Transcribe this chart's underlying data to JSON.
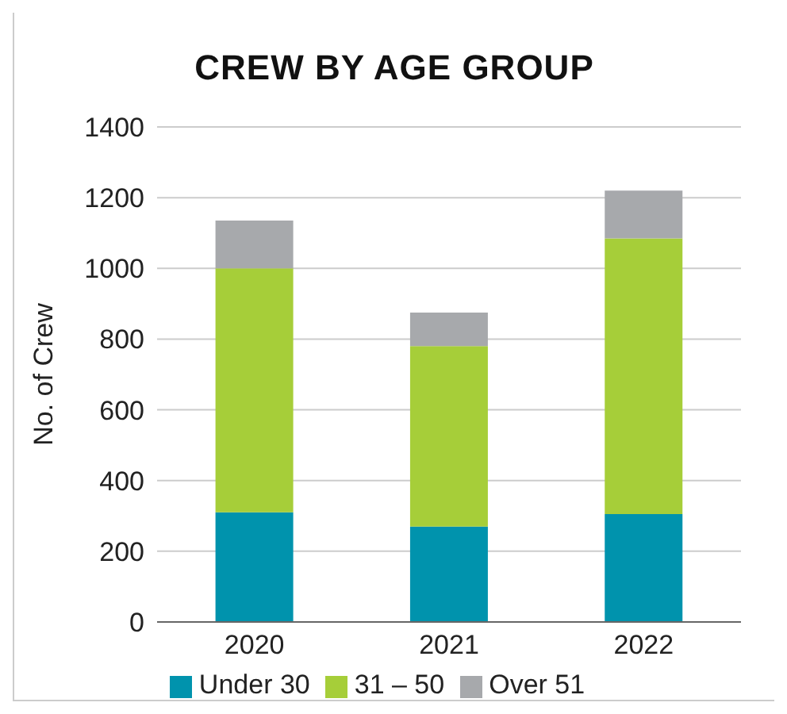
{
  "chart_data": {
    "type": "bar",
    "title": "CREW BY AGE GROUP",
    "ylabel": "No. of Crew",
    "categories": [
      "2020",
      "2021",
      "2022"
    ],
    "stacked": true,
    "series": [
      {
        "name": "Under 30",
        "color": "#0093ad",
        "values": [
          310,
          270,
          305
        ]
      },
      {
        "name": "31 – 50",
        "color": "#a6ce39",
        "values": [
          690,
          510,
          780
        ]
      },
      {
        "name": "Over 51",
        "color": "#a7a9ac",
        "values": [
          135,
          95,
          135
        ]
      }
    ],
    "ylim": [
      0,
      1400
    ],
    "yticks": [
      0,
      200,
      400,
      600,
      800,
      1000,
      1200,
      1400
    ],
    "grid": "y",
    "legend": "bottom"
  }
}
